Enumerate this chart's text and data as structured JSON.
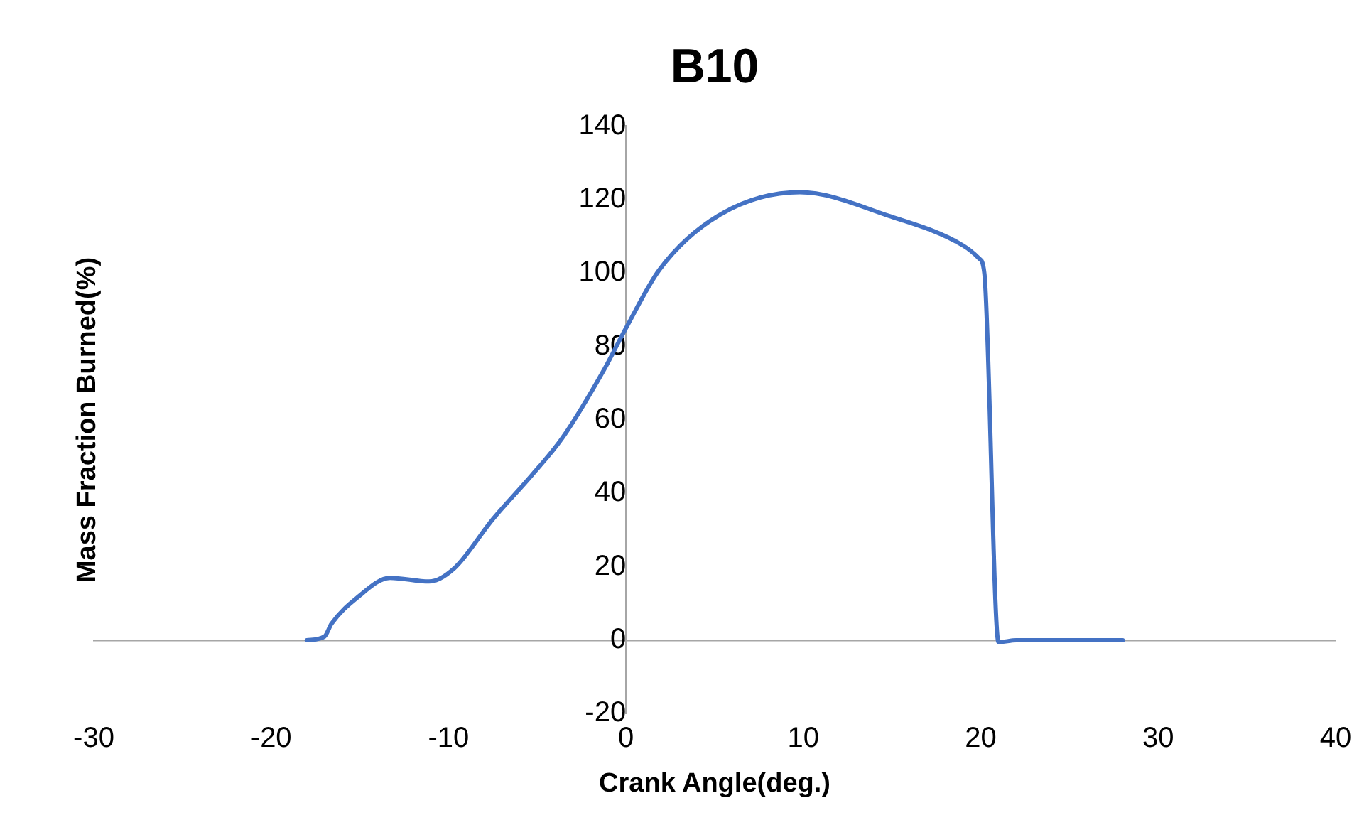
{
  "chart_data": {
    "type": "line",
    "title": "B10",
    "xlabel": "Crank Angle(deg.)",
    "ylabel": "Mass Fraction Burned(%)",
    "xlim": [
      -30,
      40
    ],
    "xticks": [
      -30,
      -20,
      -10,
      0,
      10,
      20,
      30,
      40
    ],
    "ylim": [
      -20,
      140
    ],
    "yticks": [
      -20,
      0,
      20,
      40,
      60,
      80,
      100,
      120,
      140
    ],
    "legend": false,
    "marker": "none",
    "line_style": "solid",
    "series": [
      {
        "color": "#4472c4",
        "x": [
          -18,
          -17,
          -16.6,
          -15.2,
          -13.3,
          -11.1,
          -9.7,
          -7.5,
          -5.3,
          -3.6,
          -1.2,
          0,
          1.9,
          5.2,
          9.8,
          14.8,
          19,
          19.9,
          20.2,
          21,
          22,
          28
        ],
        "values": [
          0,
          1,
          4.5,
          11.4,
          17,
          16,
          19.5,
          33,
          45,
          55,
          74,
          85,
          101,
          115.6,
          122,
          115.6,
          107.5,
          104,
          100,
          -0.5,
          0,
          0
        ]
      }
    ]
  }
}
